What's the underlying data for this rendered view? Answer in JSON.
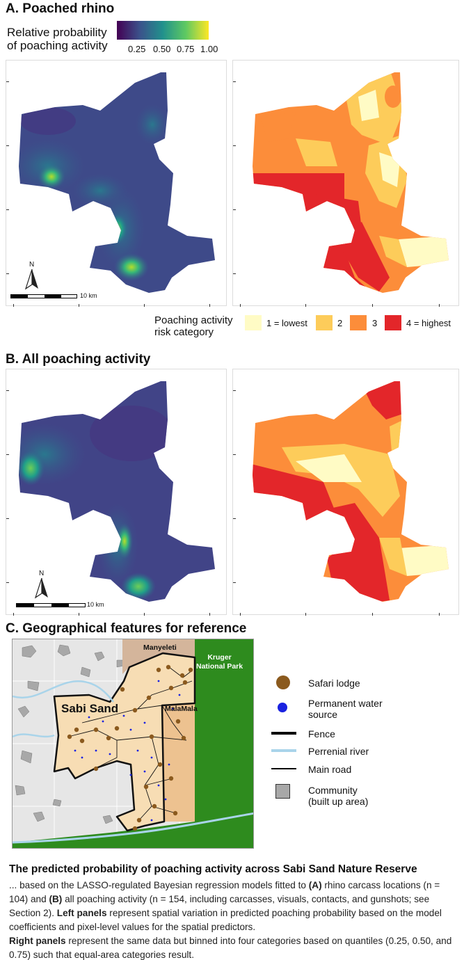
{
  "section_a": {
    "title": "A. Poached rhino",
    "colorbar_title": "Relative probability\nof poaching activity",
    "colorbar_ticks": [
      "0.25",
      "0.50",
      "0.75",
      "1.00"
    ],
    "scalebar_label": "10 km",
    "north_label": "N"
  },
  "risk_legend": {
    "title": "Poaching activity\nrisk category",
    "items": [
      {
        "label": "1 = lowest",
        "color": "#fffbc5"
      },
      {
        "label": "2",
        "color": "#fdcc5a"
      },
      {
        "label": "3",
        "color": "#fc8d3a"
      },
      {
        "label": "4 = highest",
        "color": "#e3262a"
      }
    ]
  },
  "section_b": {
    "title": "B. All poaching activity",
    "scalebar_label": "10 km",
    "north_label": "N"
  },
  "section_c": {
    "title": "C. Geographical features for reference",
    "map_labels": {
      "manyeleti": "Manyeleti",
      "kruger": "Kruger\nNational Park",
      "sabi_sand": "Sabi Sand",
      "malamala": "MalaMala"
    },
    "legend": [
      {
        "label": "Safari lodge",
        "icon": "brown-dot"
      },
      {
        "label": "Permanent water\nsource",
        "icon": "blue-dot"
      },
      {
        "label": "Fence",
        "icon": "thick-black-line"
      },
      {
        "label": "Perrenial river",
        "icon": "light-blue-line"
      },
      {
        "label": "Main road",
        "icon": "thin-black-line"
      },
      {
        "label": "Community\n(built up area)",
        "icon": "grey-square"
      }
    ],
    "colors": {
      "background": "#e6e6e6",
      "reserve": "#f7ddb4",
      "malamala": "#edc290",
      "manyeleti": "#d4b59b",
      "kruger": "#2e8b1e",
      "lodge": "#8b5a1e",
      "water": "#1a22e0",
      "river": "#a9d4ea",
      "community": "#a8a8a8"
    }
  },
  "caption": {
    "title": "The predicted probability of poaching activity across Sabi Sand Nature Reserve",
    "p1_a": "... based on the LASSO-regulated Bayesian regression models fitted to ",
    "p1_A": "(A)",
    "p1_b": " rhino carcass locations (n = 104) and ",
    "p1_B": "(B)",
    "p1_c": " all poaching activity (n = 154, including carcasses, visuals, contacts, and gunshots; see Section 2). ",
    "left_label": "Left panels",
    "left_text": " represent spatial variation in predicted poaching probability based on the model coefficients and pixel-level values for the spatial predictors.",
    "right_label": "Right panels",
    "right_text": " represent the same data but binned into four categories based on quantiles (0.25, 0.50, and 0.75) such that equal-area categories result."
  }
}
